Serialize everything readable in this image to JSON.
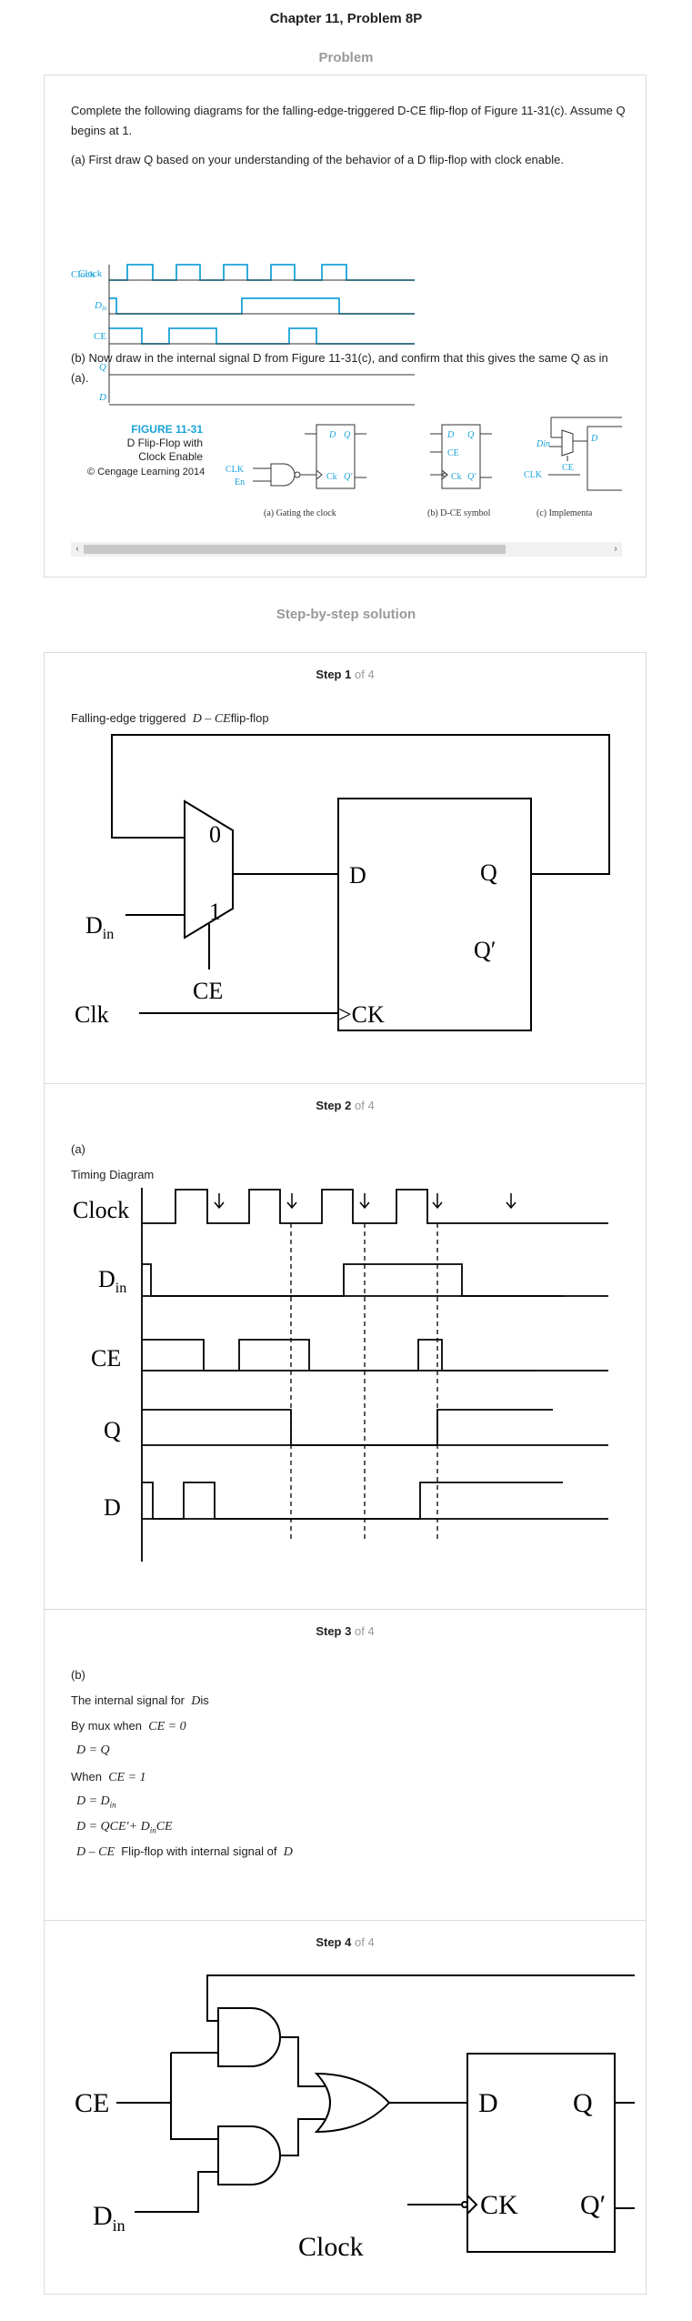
{
  "page": {
    "title": "Chapter 11, Problem 8P",
    "problem_heading": "Problem",
    "solution_heading": "Step-by-step solution"
  },
  "problem": {
    "intro": "Complete the following diagrams for the falling-edge-triggered D-CE flip-flop of Figure 11-31(c). Assume Q begins at 1.",
    "part_a": "(a) First draw Q based on your understanding of the behavior of a D flip-flop with clock enable.",
    "part_b": "(b) Now draw in the internal signal D from Figure 11-31(c), and confirm that this gives the same Q as in (a).",
    "timing_labels": [
      "Clock",
      "Din",
      "CE",
      "Q",
      "D"
    ],
    "figure": {
      "label": "FIGURE 11-31",
      "caption_line1": "D Flip-Flop with",
      "caption_line2": "Clock Enable",
      "credit": "© Cengage Learning 2014",
      "sub_a": "(a) Gating the clock",
      "sub_b": "(b) D-CE symbol",
      "sub_c": "(c) Implementa",
      "labels": {
        "clk": "CLK",
        "en": "En",
        "d": "D",
        "q": "Q",
        "qp": "Q'",
        "ck": "Ck",
        "ce": "CE",
        "din": "Din"
      }
    },
    "scroll_left": "‹",
    "scroll_right": "›"
  },
  "steps": [
    {
      "label": "Step",
      "num": "1",
      "of": "of 4",
      "text": "Falling-edge triggered",
      "math": "D – CE",
      "text2": "flip-flop",
      "diagram": {
        "in0": "0",
        "in1": "1",
        "d": "D",
        "q": "Q",
        "qp": "Q′",
        "din": "D",
        "din_sub": "in",
        "ce": "CE",
        "clk": "Clk",
        "ck": ">CK"
      }
    },
    {
      "label": "Step",
      "num": "2",
      "of": "of 4",
      "part": "(a)",
      "sub": "Timing Diagram",
      "signals": [
        "Clock",
        "D",
        "CE",
        "Q",
        "D"
      ],
      "din_sub": "in"
    },
    {
      "label": "Step",
      "num": "3",
      "of": "of 4",
      "part": "(b)",
      "line1": "The internal signal for",
      "line1_math": "D",
      "line1_end": "is",
      "line2": "By mux when",
      "line2_math": "CE = 0",
      "line3_math": "D = Q",
      "line4": "When",
      "line4_math": "CE = 1",
      "line5_math": "D = D",
      "line5_sub": "in",
      "line6_math": "D = QCE′+ D",
      "line6_sub": "in",
      "line6_end": "CE",
      "line7_math": "D – CE",
      "line7": "Flip-flop with internal signal of",
      "line7_math2": "D"
    },
    {
      "label": "Step",
      "num": "4",
      "of": "of 4",
      "diagram": {
        "ce": "CE",
        "din": "D",
        "din_sub": "in",
        "clock": "Clock",
        "d": "D",
        "q": "Q",
        "qp": "Q′",
        "ck": "CK"
      }
    }
  ],
  "colors": {
    "accent": "#1aa3d9",
    "heading_gray": "#999999",
    "border": "#dcdcdc"
  }
}
